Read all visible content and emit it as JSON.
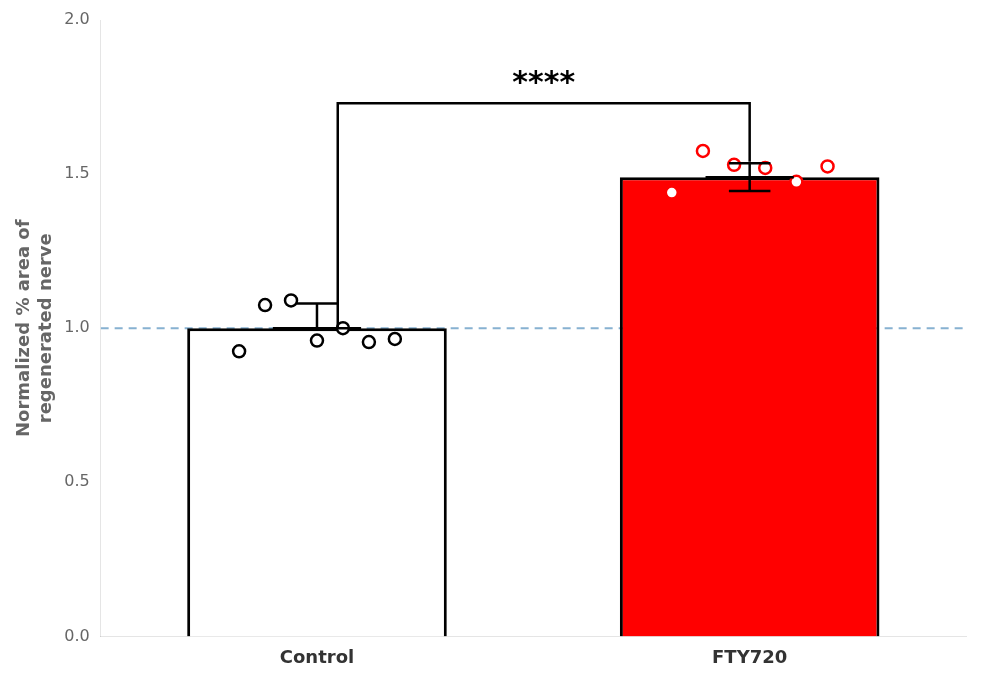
{
  "chart_data": {
    "type": "bar",
    "categories": [
      "Control",
      "FTY720"
    ],
    "values": [
      1.0,
      1.49
    ],
    "colors": [
      "#ffffff",
      "#ff0000"
    ],
    "ylabel": "Normalized % area of\nregenerated nerve",
    "ylim": [
      0.0,
      2.0
    ],
    "yticks": [
      {
        "value": 0.0,
        "label": "0.0"
      },
      0.5,
      {
        "value": 1.0,
        "label": "1.0"
      },
      1.5,
      {
        "value": 2.0,
        "label": "2.0"
      }
    ],
    "grid": false,
    "reference_line": {
      "value": 1.0,
      "color": "#7aa8cc",
      "line_style": "dashed"
    },
    "points": [
      {
        "color": "#000000",
        "marker": "circle",
        "values": [
          0.925,
          1.075,
          1.09,
          0.96,
          1.0,
          0.955,
          0.965
        ]
      },
      {
        "color": "#ff0000",
        "marker": "circle",
        "values": [
          1.44,
          1.575,
          1.53,
          1.52,
          1.475,
          1.525
        ]
      }
    ],
    "error_bars": [
      {
        "mean": 1.0,
        "plus": 0.08,
        "minus": 0.0
      },
      {
        "mean": 1.49,
        "plus": 0.045,
        "minus": 0.045
      }
    ],
    "annotations": [
      {
        "text": "****",
        "from": "Control",
        "to": "FTY720",
        "y_start": 1.0,
        "y_top": 1.73,
        "y_end": 1.54
      }
    ]
  }
}
